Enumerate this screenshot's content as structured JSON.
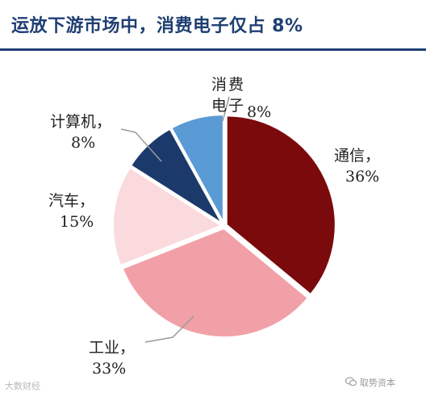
{
  "title": "运放下游市场中，消费电子仅占 8%",
  "chart_data": {
    "type": "pie",
    "title": "运放下游市场中，消费电子仅占 8%",
    "slices": [
      {
        "label": "通信",
        "value": 36,
        "pct_label": "36%",
        "color": "#7b0a0d"
      },
      {
        "label": "工业",
        "value": 33,
        "pct_label": "33%",
        "color": "#f2a0a8"
      },
      {
        "label": "汽车",
        "value": 15,
        "pct_label": "15%",
        "color": "#fadadd"
      },
      {
        "label": "计算机",
        "value": 8,
        "pct_label": "8%",
        "color": "#1b3a6b"
      },
      {
        "label": "消费电子",
        "value": 8,
        "pct_label": "8%",
        "color": "#5b9bd5"
      }
    ],
    "label_lines": [
      {
        "name": "消费电子",
        "pct": "8%"
      },
      {
        "name": "通信，",
        "pct": "36%"
      },
      {
        "name": "工业，",
        "pct": "33%"
      },
      {
        "name": "汽车，",
        "pct": "15%"
      },
      {
        "name": "计算机，",
        "pct": "8%"
      }
    ]
  },
  "watermark": {
    "left": "大数财经",
    "right": "取势资本"
  }
}
